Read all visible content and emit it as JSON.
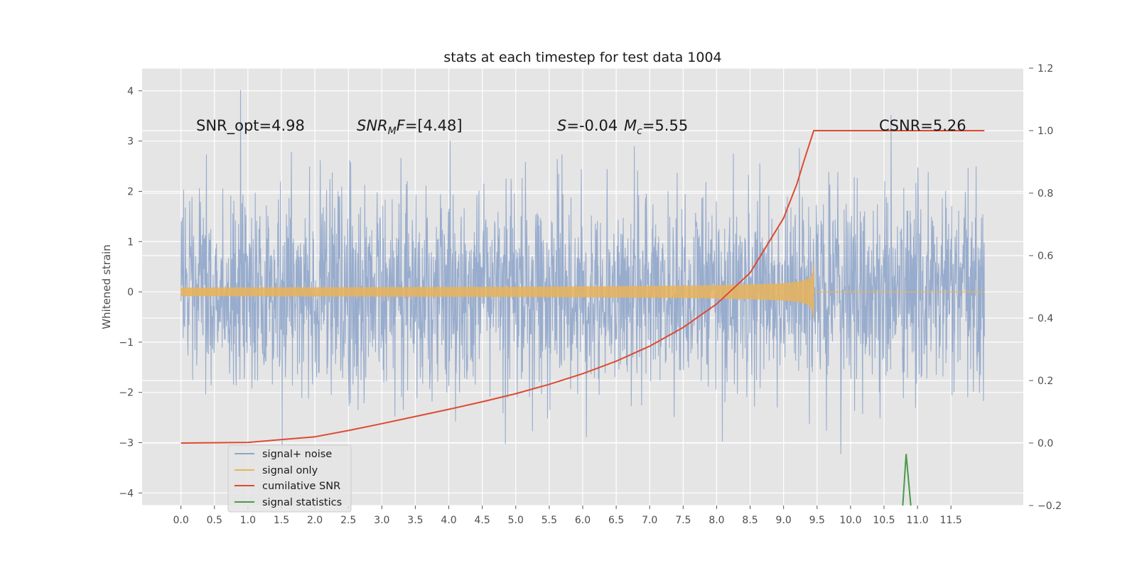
{
  "chart_data": {
    "type": "line",
    "title": "stats at each timestep for test data 1004",
    "ylabel": "Whitened strain",
    "xlabel": "",
    "xlim": [
      -0.58,
      12.58
    ],
    "ylim": [
      -4.25,
      4.45
    ],
    "y2lim": [
      -0.2,
      1.2
    ],
    "grid": true,
    "legend_position": "lower-left",
    "x_ticks": [
      "0.0",
      "0.5",
      "1.0",
      "1.5",
      "2.0",
      "2.5",
      "3.0",
      "3.5",
      "4.0",
      "4.5",
      "5.0",
      "5.5",
      "6.0",
      "6.5",
      "7.0",
      "7.5",
      "8.0",
      "8.5",
      "9.0",
      "9.5",
      "10.0",
      "10.5",
      "11.0",
      "11.5"
    ],
    "y_ticks": [
      "−4",
      "−3",
      "−2",
      "−1",
      "0",
      "1",
      "2",
      "3",
      "4"
    ],
    "y2_ticks": [
      "−0.2",
      "0.0",
      "0.2",
      "0.4",
      "0.6",
      "0.8",
      "1.0",
      "1.2"
    ],
    "annotations": [
      {
        "id": "snr-opt",
        "text": "SNR_opt=4.98",
        "x": 0.2,
        "y": 3.25
      },
      {
        "id": "snr-mf",
        "text": "SNR",
        "sub": "M",
        "suffix_italic": "F",
        "suffix": "=[4.48]",
        "x": 2.6,
        "y": 3.25
      },
      {
        "id": "stat-s",
        "text": "S",
        "value": "=-0.04",
        "x": 5.6,
        "y": 3.25
      },
      {
        "id": "stat-mc",
        "text": "M",
        "sub": "c",
        "value": "=5.55",
        "x": 6.6,
        "y": 3.25
      },
      {
        "id": "csnr",
        "text": "CSNR=5.26",
        "x": 10.4,
        "y": 3.25
      }
    ],
    "series": [
      {
        "name": "signal+ noise",
        "color": "#8fa5ca",
        "axis": "left",
        "description": "whitened noise, approximately unit variance, range about -3.9 to 4.1",
        "x_range": [
          0,
          12
        ],
        "amplitude_sigma": 1.0
      },
      {
        "name": "signal only",
        "color": "#e8b35a",
        "axis": "left",
        "description": "chirp with growing amplitude ending at t=9.45, peak about 0.55",
        "x_range": [
          0,
          9.45
        ],
        "peak_amplitude": 0.55
      },
      {
        "name": "cumilative SNR",
        "color": "#dd4a32",
        "axis": "right",
        "x": [
          0.0,
          1.0,
          2.0,
          2.5,
          3.0,
          3.5,
          4.0,
          4.5,
          5.0,
          5.5,
          6.0,
          6.5,
          7.0,
          7.5,
          8.0,
          8.5,
          9.0,
          9.2,
          9.3,
          9.45,
          10.0,
          11.0,
          11.5,
          12.0
        ],
        "values": [
          0.0,
          0.002,
          0.02,
          0.04,
          0.062,
          0.085,
          0.108,
          0.132,
          0.158,
          0.188,
          0.222,
          0.262,
          0.31,
          0.37,
          0.445,
          0.545,
          0.72,
          0.83,
          0.9,
          1.0,
          1.0,
          1.0,
          1.0,
          1.0
        ]
      },
      {
        "name": "signal statistics",
        "color": "#4a9a4a",
        "axis": "right",
        "x": [
          10.78,
          10.83,
          10.9
        ],
        "values": [
          -0.2,
          -0.035,
          -0.2
        ]
      }
    ]
  }
}
